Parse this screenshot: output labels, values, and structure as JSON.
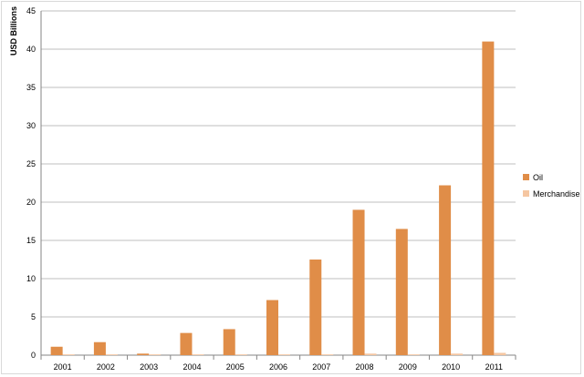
{
  "chart_data": {
    "type": "bar",
    "title": "",
    "xlabel": "",
    "ylabel": "USD Billions",
    "ylim": [
      0,
      45
    ],
    "yticks": [
      0,
      5,
      10,
      15,
      20,
      25,
      30,
      35,
      40,
      45
    ],
    "grid": true,
    "legend_position": "right",
    "categories": [
      "2001",
      "2002",
      "2003",
      "2004",
      "2005",
      "2006",
      "2007",
      "2008",
      "2009",
      "2010",
      "2011"
    ],
    "series": [
      {
        "name": "Oil",
        "color": "#e08d48",
        "values": [
          1.1,
          1.7,
          0.2,
          2.9,
          3.4,
          7.2,
          12.5,
          19.0,
          16.5,
          22.2,
          41.0
        ]
      },
      {
        "name": "Merchandise",
        "color": "#f5c6a1",
        "values": [
          0.1,
          0.1,
          0.1,
          0.1,
          0.1,
          0.1,
          0.1,
          0.2,
          0.1,
          0.2,
          0.3
        ]
      }
    ]
  }
}
